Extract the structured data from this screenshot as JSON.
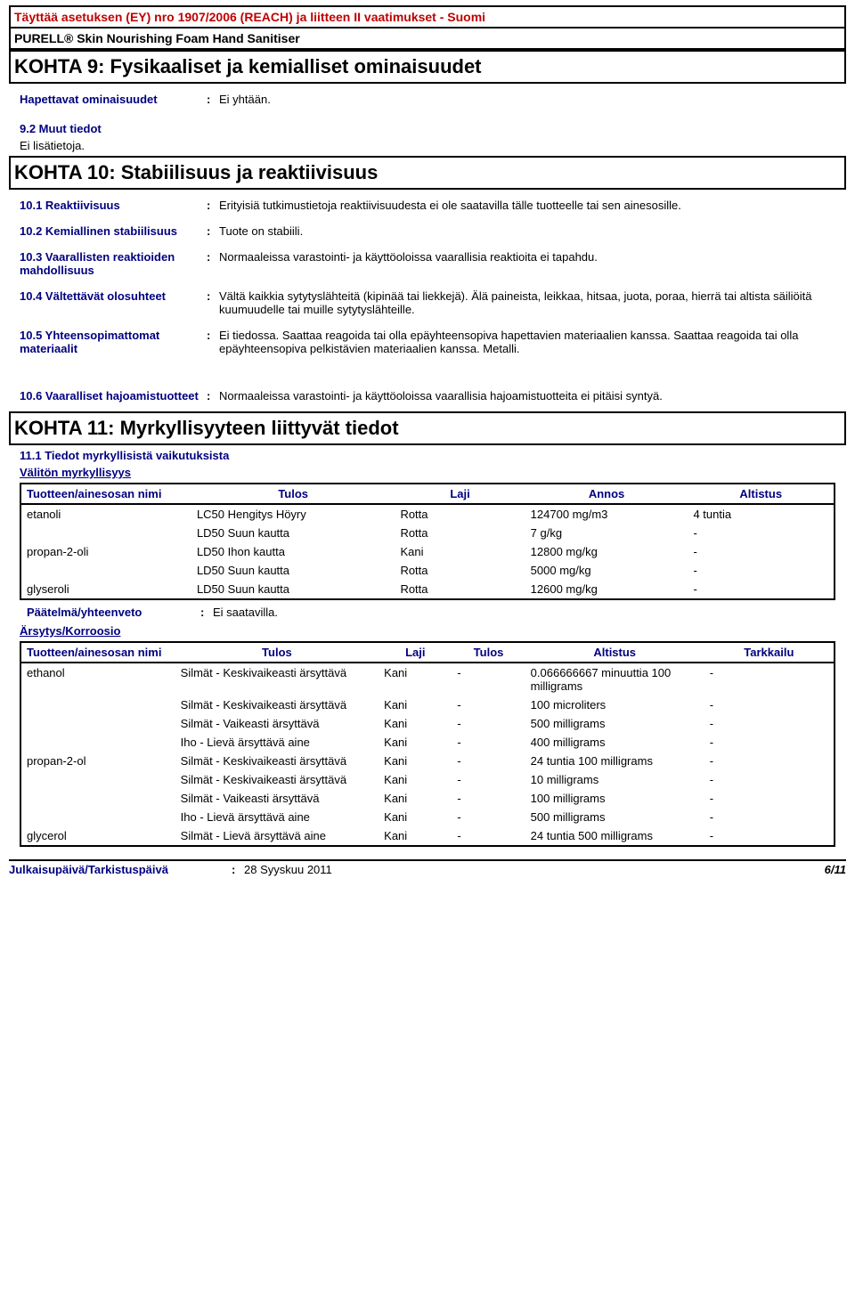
{
  "header": {
    "compliance": "Täyttää asetuksen (EY) nro 1907/2006 (REACH) ja liitteen II vaatimukset - Suomi",
    "product": "PURELL® Skin Nourishing Foam Hand Sanitiser"
  },
  "section9": {
    "title": "KOHTA 9: Fysikaaliset ja kemialliset ominaisuudet",
    "prop_label": "Hapettavat ominaisuudet",
    "prop_value": "Ei yhtään.",
    "sub_title": "9.2 Muut tiedot",
    "sub_text": "Ei lisätietoja."
  },
  "section10": {
    "title": "KOHTA 10: Stabiilisuus ja reaktiivisuus",
    "r1_label": "10.1 Reaktiivisuus",
    "r1_value": "Erityisiä tutkimustietoja reaktiivisuudesta ei ole saatavilla tälle tuotteelle tai sen ainesosille.",
    "r2_label": "10.2 Kemiallinen stabiilisuus",
    "r2_value": "Tuote on stabiili.",
    "r3_label": "10.3 Vaarallisten reaktioiden mahdollisuus",
    "r3_value": "Normaaleissa varastointi- ja käyttöoloissa vaarallisia reaktioita ei tapahdu.",
    "r4_label": "10.4 Vältettävät olosuhteet",
    "r4_value": "Vältä kaikkia sytytyslähteitä (kipinää tai liekkejä). Älä paineista, leikkaa, hitsaa, juota, poraa, hierrä tai altista säiliöitä kuumuudelle tai muille sytytyslähteille.",
    "r5_label": "10.5 Yhteensopimattomat materiaalit",
    "r5_value": "Ei tiedossa. Saattaa reagoida tai olla epäyhteensopiva hapettavien materiaalien kanssa. Saattaa reagoida tai olla epäyhteensopiva pelkistävien materiaalien kanssa. Metalli.",
    "r6_label": "10.6 Vaaralliset hajoamistuotteet",
    "r6_value": "Normaaleissa varastointi- ja käyttöoloissa vaarallisia hajoamistuotteita ei pitäisi syntyä."
  },
  "section11": {
    "title": "KOHTA 11: Myrkyllisyyteen liittyvät tiedot",
    "sub_title": "11.1 Tiedot myrkyllisistä vaikutuksista",
    "acute": "Välitön myrkyllisyys",
    "conclusion_label": "Päätelmä/yhteenveto",
    "conclusion_value": "Ei saatavilla.",
    "irritation": "Ärsytys/Korroosio"
  },
  "table1": {
    "headers": [
      "Tuotteen/ainesosan nimi",
      "Tulos",
      "Laji",
      "Annos",
      "Altistus"
    ],
    "rows": [
      [
        "etanoli",
        "LC50 Hengitys Höyry",
        "Rotta",
        "124700 mg/m3",
        "4 tuntia"
      ],
      [
        "",
        "LD50 Suun kautta",
        "Rotta",
        "7 g/kg",
        "-"
      ],
      [
        "propan-2-oli",
        "LD50 Ihon kautta",
        "Kani",
        "12800 mg/kg",
        "-"
      ],
      [
        "",
        "LD50 Suun kautta",
        "Rotta",
        "5000 mg/kg",
        "-"
      ],
      [
        "glyseroli",
        "LD50 Suun kautta",
        "Rotta",
        "12600 mg/kg",
        "-"
      ]
    ]
  },
  "table2": {
    "headers": [
      "Tuotteen/ainesosan nimi",
      "Tulos",
      "Laji",
      "Tulos",
      "Altistus",
      "Tarkkailu"
    ],
    "rows": [
      [
        "ethanol",
        "Silmät - Keskivaikeasti ärsyttävä",
        "Kani",
        "-",
        "0.066666667 minuuttia 100 milligrams",
        "-"
      ],
      [
        "",
        "Silmät - Keskivaikeasti ärsyttävä",
        "Kani",
        "-",
        "100 microliters",
        "-"
      ],
      [
        "",
        "Silmät - Vaikeasti ärsyttävä",
        "Kani",
        "-",
        "500 milligrams",
        "-"
      ],
      [
        "",
        "Iho - Lievä ärsyttävä aine",
        "Kani",
        "-",
        "400 milligrams",
        "-"
      ],
      [
        "propan-2-ol",
        "Silmät - Keskivaikeasti ärsyttävä",
        "Kani",
        "-",
        "24 tuntia 100 milligrams",
        "-"
      ],
      [
        "",
        "Silmät - Keskivaikeasti ärsyttävä",
        "Kani",
        "-",
        "10 milligrams",
        "-"
      ],
      [
        "",
        "Silmät - Vaikeasti ärsyttävä",
        "Kani",
        "-",
        "100 milligrams",
        "-"
      ],
      [
        "",
        "Iho - Lievä ärsyttävä aine",
        "Kani",
        "-",
        "500 milligrams",
        "-"
      ],
      [
        "glycerol",
        "Silmät - Lievä ärsyttävä aine",
        "Kani",
        "-",
        "24 tuntia 500 milligrams",
        "-"
      ]
    ]
  },
  "footer": {
    "label": "Julkaisupäivä/Tarkistuspäivä",
    "date": "28 Syyskuu 2011",
    "page": "6/11"
  },
  "colors": {
    "red": "#c00000",
    "blue": "#000080",
    "black": "#000000"
  }
}
